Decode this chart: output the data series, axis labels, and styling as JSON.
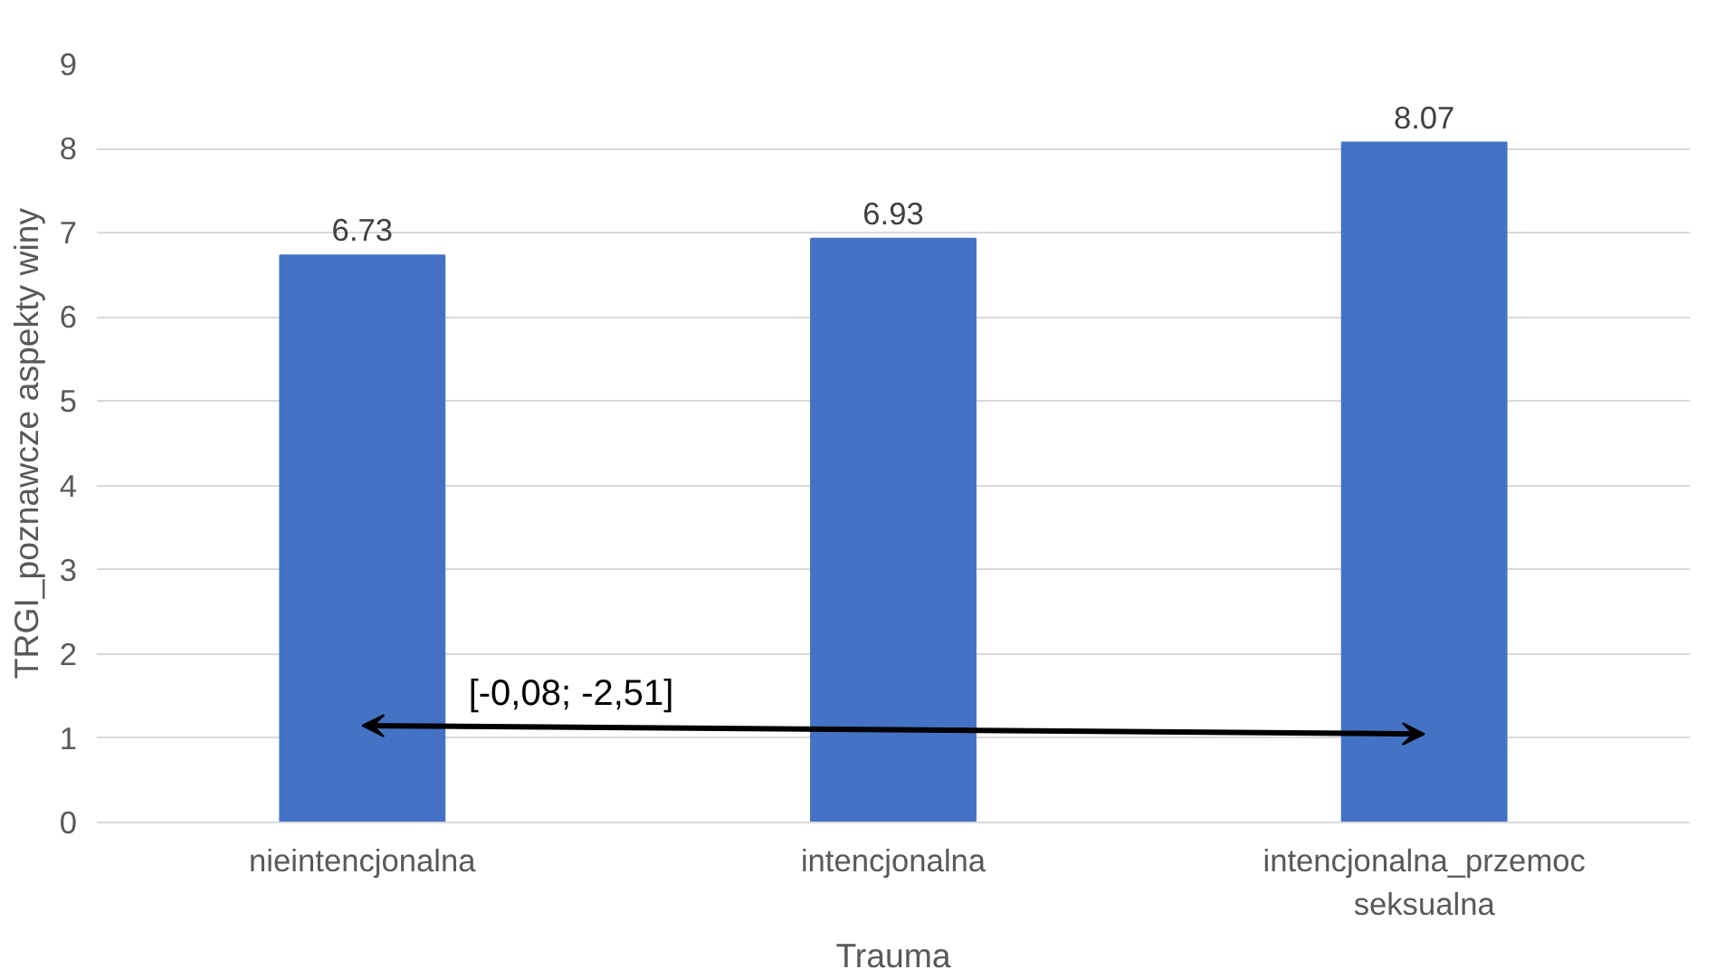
{
  "chart_data": {
    "type": "bar",
    "xlabel": "Trauma",
    "ylabel": "TRGI_poznawcze aspekty winy",
    "categories": [
      "nieintencjonalna",
      "intencjonalna",
      "intencjonalna_przemoc seksualna"
    ],
    "values": [
      6.73,
      6.93,
      8.07
    ],
    "color": "#4472c4",
    "ylim": [
      0,
      9
    ],
    "yticks": [
      0,
      1,
      2,
      3,
      4,
      5,
      6,
      7,
      8,
      9
    ],
    "grid": "y",
    "data_labels": true,
    "annotations": [
      "[-0,08; -2,51]"
    ]
  }
}
